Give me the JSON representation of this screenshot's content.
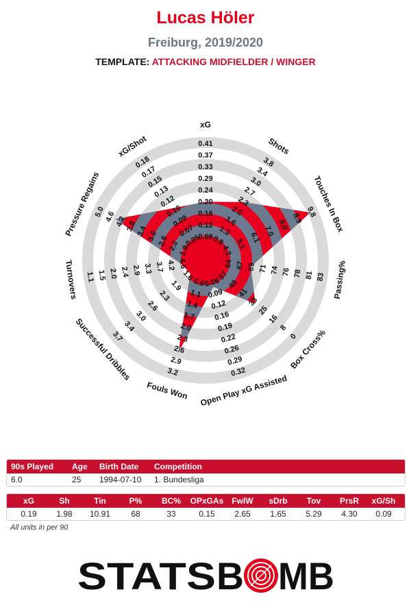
{
  "header": {
    "title": "Lucas Höler",
    "subtitle": "Freiburg, 2019/2020",
    "template_label": "TEMPLATE:",
    "template_value": "ATTACKING MIDFIELDER / WINGER"
  },
  "colors": {
    "accent": "#c8102e",
    "title": "#e3001b",
    "fill_red": "#e8001e",
    "fill_gray": "#6b7a8f",
    "ring": "#dadada"
  },
  "chart_data": {
    "type": "radar",
    "axes": [
      {
        "label": "xG",
        "ticks": [
          "0.08",
          "0.12",
          "0.16",
          "0.20",
          "0.24",
          "0.29",
          "0.33",
          "0.37",
          "0.41"
        ],
        "frac": 0.42
      },
      {
        "label": "Shots",
        "ticks": [
          "0.9",
          "1.3",
          "1.6",
          "2.0",
          "2.3",
          "2.7",
          "3.0",
          "3.4",
          "3.8"
        ],
        "frac": 0.52
      },
      {
        "label": "Touches In Box",
        "ticks": [
          "4.2",
          "5.1",
          "6.1",
          "7.0",
          "8.0",
          "8.9",
          "9.8"
        ],
        "frac": 0.95
      },
      {
        "label": "Passing%",
        "ticks": [
          "64",
          "67",
          "69",
          "71",
          "74",
          "76",
          "78",
          "81",
          "83"
        ],
        "frac": 0.3
      },
      {
        "label": "Box Cross%",
        "ticks": [
          "57",
          "49",
          "41",
          "33",
          "25",
          "16",
          "8",
          "0"
        ],
        "frac": 0.49
      },
      {
        "label": "Open Play xG Assisted",
        "ticks": [
          "0.06",
          "0.09",
          "0.12",
          "0.16",
          "0.19",
          "0.22",
          "0.26",
          "0.29",
          "0.32"
        ],
        "frac": 0.13
      },
      {
        "label": "Fouls Won",
        "ticks": [
          "0.8",
          "1.1",
          "1.4",
          "1.7",
          "2.0",
          "2.3",
          "2.6",
          "2.9",
          "3.2"
        ],
        "frac": 0.77
      },
      {
        "label": "Successful Dribbles",
        "ticks": [
          "1.6",
          "1.9",
          "2.3",
          "2.6",
          "3.0",
          "3.4",
          "3.7"
        ],
        "frac": 0.06
      },
      {
        "label": "Turnovers",
        "ticks": [
          "4.6",
          "4.2",
          "3.7",
          "3.3",
          "2.9",
          "2.4",
          "2.0",
          "1.5",
          "1.1"
        ],
        "frac": 0.1
      },
      {
        "label": "Pressure Regains",
        "ticks": [
          "1.8",
          "2.2",
          "2.6",
          "3.0",
          "3.4",
          "3.8",
          "4.2",
          "4.6",
          "5.0"
        ],
        "frac": 0.8
      },
      {
        "label": "xG/Shot",
        "ticks": [
          "0.05",
          "0.07",
          "0.09",
          "0.10",
          "0.12",
          "0.13",
          "0.15",
          "0.17",
          "0.18"
        ],
        "frac": 0.45
      }
    ]
  },
  "info_table": {
    "headers": [
      "90s Played",
      "Age",
      "Birth Date",
      "Competition"
    ],
    "values": [
      "6.0",
      "25",
      "1994-07-10",
      "1. Bundesliga"
    ]
  },
  "stats_table": {
    "headers": [
      "xG",
      "Sh",
      "Tin",
      "P%",
      "BC%",
      "OPxGAs",
      "FwlW",
      "sDrb",
      "Tov",
      "PrsR",
      "xG/Sh"
    ],
    "values": [
      "0.19",
      "1.98",
      "10.91",
      "68",
      "33",
      "0.15",
      "2.65",
      "1.65",
      "5.29",
      "4.30",
      "0.09"
    ]
  },
  "footer": {
    "units_note": "All units in per 90",
    "logo_part1": "STATS",
    "logo_part2": "B",
    "logo_part3": "MB"
  }
}
